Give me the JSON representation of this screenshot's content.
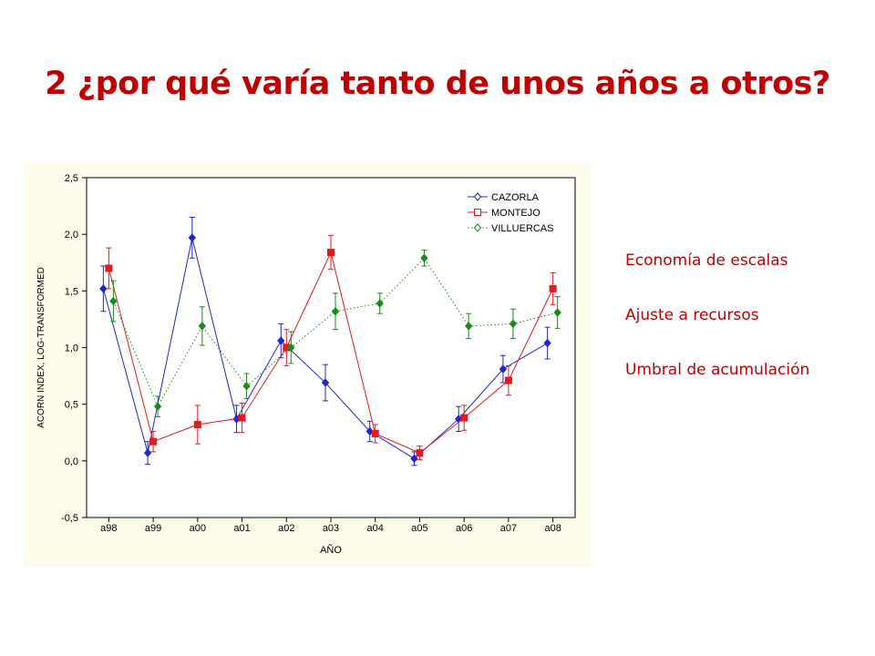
{
  "slide": {
    "title": "2 ¿por qué varía tanto de unos años a otros?",
    "title_color": "#c00000",
    "bullets": [
      "Economía de escalas",
      "Ajuste a recursos",
      "Umbral de acumulación"
    ],
    "bullet_color": "#c00000"
  },
  "chart_data": {
    "type": "line",
    "xlabel": "AÑO",
    "ylabel": "ACORN INDEX, LOG-TRANSFORMED",
    "categories": [
      "a98",
      "a99",
      "a00",
      "a01",
      "a02",
      "a03",
      "a04",
      "a05",
      "a06",
      "a07",
      "a08"
    ],
    "ylim": [
      -0.5,
      2.5
    ],
    "yticks": [
      "2,5",
      "2,0",
      "1,5",
      "1,0",
      "0,5",
      "0,0",
      "-0,5"
    ],
    "ytick_values": [
      2.5,
      2.0,
      1.5,
      1.0,
      0.5,
      0.0,
      -0.5
    ],
    "grid": false,
    "legend_position": "top-right",
    "background_color": "#fdfbea",
    "error_bars": true,
    "series": [
      {
        "name": "CAZORLA",
        "color": "#1f27c8",
        "line_style": "solid",
        "marker": "diamond",
        "values": [
          1.52,
          0.07,
          1.97,
          0.37,
          1.06,
          0.69,
          0.26,
          0.02,
          0.37,
          0.81,
          1.04
        ],
        "errors": [
          0.2,
          0.1,
          0.18,
          0.12,
          0.15,
          0.16,
          0.09,
          0.06,
          0.11,
          0.12,
          0.14
        ]
      },
      {
        "name": "MONTEJO",
        "color": "#e41a1c",
        "line_style": "solid",
        "marker": "square",
        "values": [
          1.7,
          0.17,
          0.32,
          0.38,
          1.0,
          1.84,
          0.24,
          0.07,
          0.38,
          0.71,
          1.52
        ],
        "errors": [
          0.18,
          0.09,
          0.17,
          0.13,
          0.16,
          0.15,
          0.08,
          0.06,
          0.11,
          0.13,
          0.14
        ]
      },
      {
        "name": "VILLUERCAS",
        "color": "#1a8a1a",
        "line_style": "dotted",
        "marker": "diamond",
        "values": [
          1.41,
          0.48,
          1.19,
          0.66,
          1.0,
          1.32,
          1.39,
          1.79,
          1.19,
          1.21,
          1.31
        ],
        "errors": [
          0.18,
          0.09,
          0.17,
          0.11,
          0.14,
          0.16,
          0.09,
          0.07,
          0.11,
          0.13,
          0.14
        ]
      }
    ]
  }
}
